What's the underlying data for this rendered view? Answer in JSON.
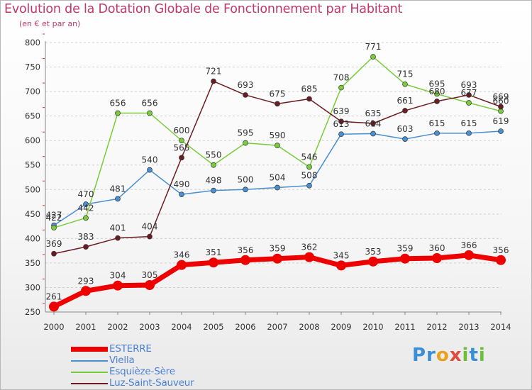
{
  "header": {
    "title": "Evolution de la Dotation Globale de Fonctionnement par Habitant",
    "subtitle": "(en € et par an)"
  },
  "logo": {
    "text": "Proxiti"
  },
  "chart_data": {
    "type": "line",
    "x": [
      "2000",
      "2001",
      "2002",
      "2003",
      "2004",
      "2005",
      "2006",
      "2007",
      "2008",
      "2009",
      "2010",
      "2011",
      "2012",
      "2013",
      "2014"
    ],
    "ylim": [
      250,
      800
    ],
    "yticks": [
      250,
      300,
      350,
      400,
      450,
      500,
      550,
      600,
      650,
      700,
      750,
      800
    ],
    "grid": "horizontal dashed",
    "legend_position": "bottom-left",
    "series": [
      {
        "name": "ESTERRE",
        "color": "#ee0000",
        "emphasis": true,
        "values": [
          261,
          293,
          304,
          305,
          346,
          351,
          356,
          359,
          362,
          345,
          353,
          359,
          360,
          366,
          356
        ]
      },
      {
        "name": "Viella",
        "color": "#4a8fd0",
        "values": [
          427,
          470,
          481,
          540,
          490,
          498,
          500,
          504,
          508,
          613,
          614,
          603,
          615,
          615,
          619
        ]
      },
      {
        "name": "Esquièze-Sère",
        "color": "#79cc3b",
        "values": [
          422,
          442,
          656,
          656,
          600,
          550,
          595,
          590,
          546,
          708,
          771,
          715,
          695,
          677,
          660
        ]
      },
      {
        "name": "Luz-Saint-Sauveur",
        "color": "#6b1c22",
        "values": [
          369,
          383,
          401,
          404,
          565,
          721,
          693,
          675,
          685,
          639,
          635,
          661,
          680,
          693,
          669
        ]
      }
    ]
  }
}
